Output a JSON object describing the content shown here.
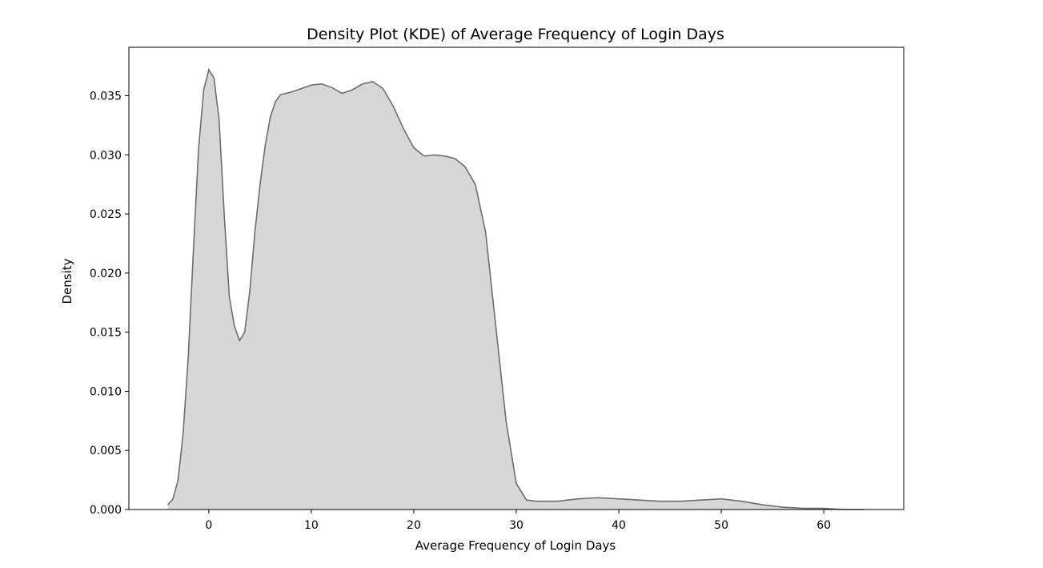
{
  "chart_data": {
    "type": "area",
    "title": "Density Plot (KDE) of Average Frequency of Login Days",
    "xlabel": "Average Frequency of Login Days",
    "ylabel": "Density",
    "xlim": [
      -7.8,
      67.8
    ],
    "ylim": [
      0.0,
      0.0391
    ],
    "xticks": [
      0,
      10,
      20,
      30,
      40,
      50,
      60
    ],
    "xtick_labels": [
      "0",
      "10",
      "20",
      "30",
      "40",
      "50",
      "60"
    ],
    "yticks": [
      0.0,
      0.005,
      0.01,
      0.015,
      0.02,
      0.025,
      0.03,
      0.035
    ],
    "ytick_labels": [
      "0.000",
      "0.005",
      "0.010",
      "0.015",
      "0.020",
      "0.025",
      "0.030",
      "0.035"
    ],
    "grid": false,
    "legend": false,
    "colors": {
      "fill": "#d7d7d7",
      "line": "#6e6e6e",
      "axes": "#000000"
    },
    "series": [
      {
        "x": [
          -4.0,
          -3.5,
          -3.0,
          -2.5,
          -2.0,
          -1.5,
          -1.0,
          -0.5,
          0.0,
          0.5,
          1.0,
          1.5,
          2.0,
          2.5,
          3.0,
          3.5,
          4.0,
          4.5,
          5.0,
          5.5,
          6.0,
          6.5,
          7.0,
          8.0,
          9.0,
          10.0,
          11.0,
          12.0,
          13.0,
          14.0,
          15.0,
          16.0,
          17.0,
          18.0,
          19.0,
          20.0,
          21.0,
          22.0,
          23.0,
          24.0,
          25.0,
          26.0,
          27.0,
          28.0,
          29.0,
          30.0,
          31.0,
          32.0,
          33.0,
          34.0,
          35.0,
          36.0,
          38.0,
          40.0,
          42.0,
          44.0,
          46.0,
          48.0,
          50.0,
          52.0,
          54.0,
          56.0,
          58.0,
          60.0,
          62.0,
          64.0
        ],
        "y": [
          0.0004,
          0.0009,
          0.0025,
          0.0065,
          0.013,
          0.022,
          0.0305,
          0.0355,
          0.0372,
          0.0365,
          0.033,
          0.025,
          0.018,
          0.0155,
          0.0143,
          0.015,
          0.0185,
          0.0235,
          0.0275,
          0.0308,
          0.0332,
          0.0345,
          0.0351,
          0.0353,
          0.0356,
          0.0359,
          0.036,
          0.0357,
          0.0352,
          0.0355,
          0.036,
          0.0362,
          0.0356,
          0.0341,
          0.0322,
          0.0306,
          0.0299,
          0.03,
          0.0299,
          0.0297,
          0.029,
          0.0275,
          0.0235,
          0.0155,
          0.0075,
          0.0022,
          0.0008,
          0.0007,
          0.0007,
          0.0007,
          0.0008,
          0.0009,
          0.001,
          0.0009,
          0.0008,
          0.0007,
          0.0007,
          0.0008,
          0.0009,
          0.0007,
          0.0004,
          0.0002,
          0.0001,
          0.0001,
          0.0,
          0.0
        ]
      }
    ]
  }
}
